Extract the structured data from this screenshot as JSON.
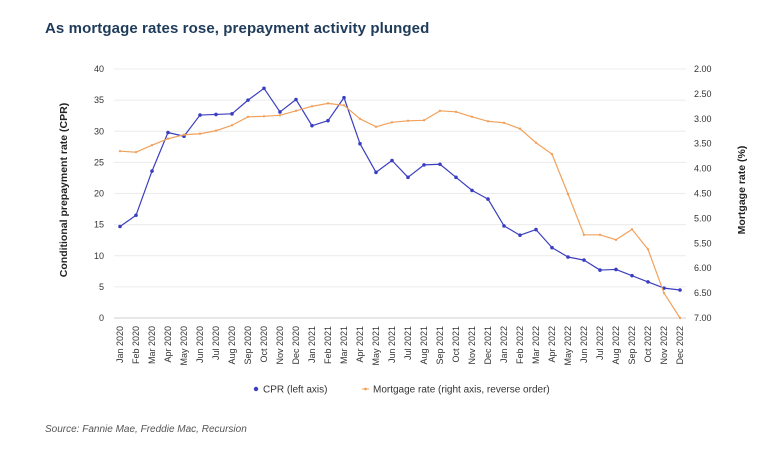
{
  "title": "As mortgage rates rose, prepayment activity plunged",
  "source": "Source: Fannie Mae, Freddie Mac, Recursion",
  "chart_data": {
    "type": "line",
    "title": "As mortgage rates rose, prepayment activity plunged",
    "categories": [
      "Jan 2020",
      "Feb 2020",
      "Mar 2020",
      "Apr 2020",
      "May 2020",
      "Jun 2020",
      "Jul 2020",
      "Aug 2020",
      "Sep 2020",
      "Oct 2020",
      "Nov 2020",
      "Dec 2020",
      "Jan 2021",
      "Feb 2021",
      "Mar 2021",
      "Apr 2021",
      "May 2021",
      "Jun 2021",
      "Jul 2021",
      "Aug 2021",
      "Sep 2021",
      "Oct 2021",
      "Nov 2021",
      "Dec 2021",
      "Jan 2022",
      "Feb 2022",
      "Mar 2022",
      "Apr 2022",
      "May 2022",
      "Jun 2022",
      "Jul 2022",
      "Aug 2022",
      "Sep 2022",
      "Oct 2022",
      "Nov 2022",
      "Dec 2022"
    ],
    "ylabel_left": "Conditional prepayment rate (CPR)",
    "ylabel_right": "Mortgage rate (%)",
    "ylim_left": [
      0,
      40
    ],
    "yticks_left": [
      "0",
      "5",
      "10",
      "15",
      "20",
      "25",
      "30",
      "35",
      "40"
    ],
    "ylim_right": [
      2.0,
      7.0
    ],
    "yticks_right": [
      "2.00",
      "2.50",
      "3.00",
      "3.50",
      "4.00",
      "4.50",
      "5.00",
      "5.50",
      "6.00",
      "6.50",
      "7.00"
    ],
    "right_axis_reversed": true,
    "series": [
      {
        "name": "CPR (left axis)",
        "axis": "left",
        "color": "#3b3fbf",
        "values": [
          14.7,
          16.5,
          23.6,
          29.8,
          29.2,
          32.6,
          32.7,
          32.8,
          35.0,
          36.9,
          33.1,
          35.1,
          30.9,
          31.7,
          35.4,
          28.0,
          23.4,
          25.3,
          22.6,
          24.6,
          24.7,
          22.6,
          20.5,
          19.1,
          14.8,
          13.3,
          14.2,
          11.3,
          9.8,
          9.3,
          7.7,
          7.8,
          6.8,
          5.8,
          4.8,
          4.5
        ]
      },
      {
        "name": "Mortgage rate (right axis, reverse order)",
        "axis": "right",
        "color": "#f2a15c",
        "values": [
          3.65,
          3.67,
          3.53,
          3.4,
          3.32,
          3.3,
          3.24,
          3.13,
          2.96,
          2.95,
          2.93,
          2.84,
          2.75,
          2.69,
          2.73,
          3.0,
          3.16,
          3.07,
          3.04,
          3.03,
          2.84,
          2.86,
          2.96,
          3.05,
          3.08,
          3.2,
          3.48,
          3.71,
          4.51,
          5.33,
          5.33,
          5.43,
          5.22,
          5.62,
          6.5,
          7.0
        ]
      }
    ],
    "legend_position": "bottom-center"
  }
}
